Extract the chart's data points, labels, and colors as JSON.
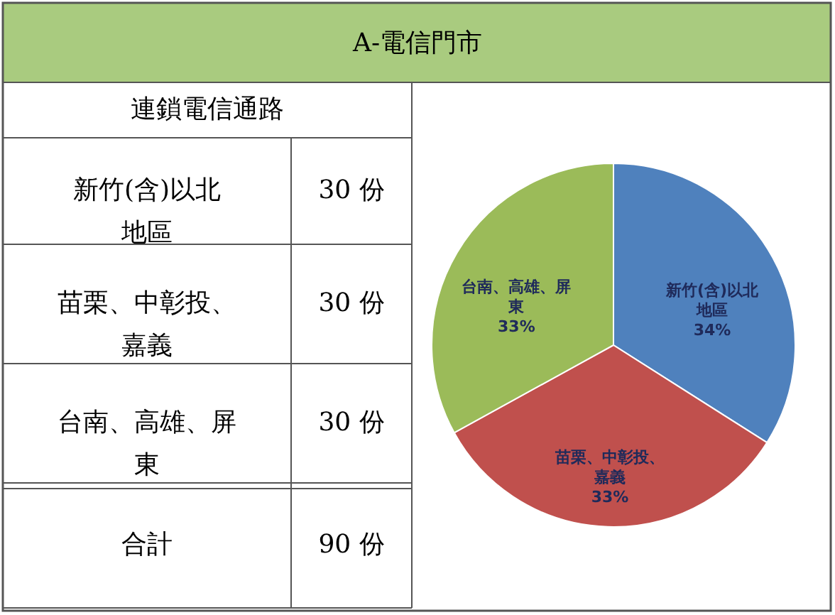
{
  "chart_data": {
    "type": "pie",
    "title": "A-電信門市",
    "categories": [
      "新竹(含)以北地區",
      "苗栗、中彰投、嘉義",
      "台南、高雄、屏東"
    ],
    "values": [
      34,
      33,
      33
    ],
    "colors": [
      "#4f81bd",
      "#c0504d",
      "#9bbb59"
    ],
    "value_labels": [
      "34%",
      "33%",
      "33%"
    ],
    "annotations": [
      "連鎖電信通路",
      "新竹(含)以北地區",
      "30 份",
      "苗栗、中彰投、嘉義",
      "30 份",
      "台南、高雄、屏東",
      "30 份",
      "合計",
      "90 份"
    ]
  }
}
